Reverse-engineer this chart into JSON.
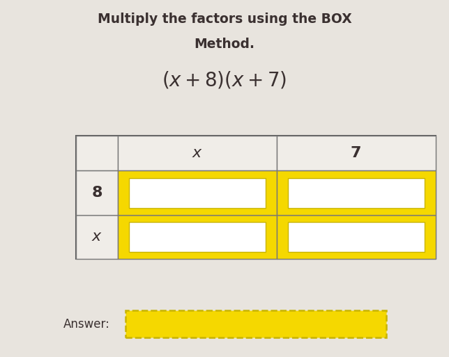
{
  "title_line1": "Multiply the factors using the BOX",
  "title_line2": "Method.",
  "expression": "(x + 8)(x + 7)",
  "col_headers": [
    "x",
    "7"
  ],
  "row_headers": [
    "x",
    "8"
  ],
  "background_color": "#e8e4de",
  "cell_fill_color": "#F5D800",
  "cell_border_color": "#c8b400",
  "answer_fill_color": "#F5D800",
  "answer_border_color": "#c8b400",
  "answer_label": "Answer:",
  "table_bg": "#ffffff",
  "header_bg": "#f0ede8",
  "title_color": "#3a3030",
  "text_color": "#3a3030"
}
